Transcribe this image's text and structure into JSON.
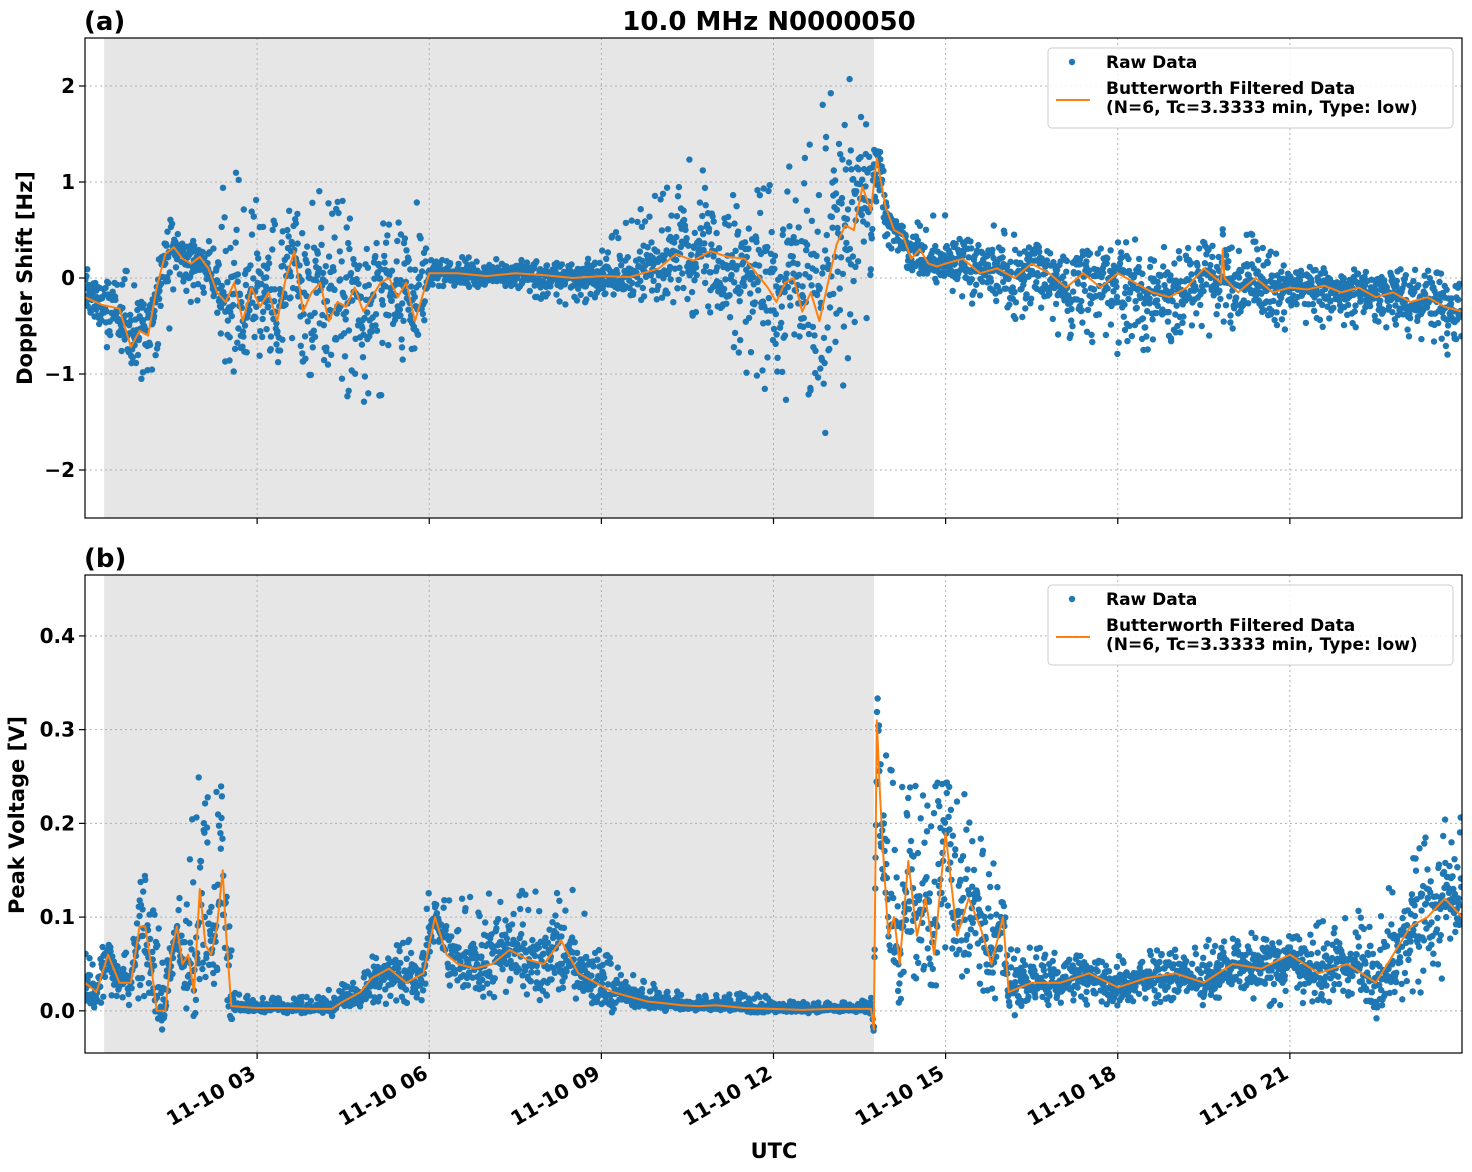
{
  "figure": {
    "title": "10.0 MHz N0000050",
    "xlabel": "UTC",
    "colors": {
      "raw": "#1f77b4",
      "filtered": "#ff7f0e",
      "shade": "#e6e6e6",
      "grid": "#b0b0b0"
    }
  },
  "chart_data": [
    {
      "type": "scatter",
      "panel_label": "(a)",
      "ylabel": "Doppler Shift [Hz]",
      "xlim": [
        "11-10 00:00",
        "11-10 24:00"
      ],
      "x_unit": "hours UTC on 11-10",
      "ylim": [
        -2.5,
        2.5
      ],
      "yticks": [
        -2,
        -1,
        0,
        1,
        2
      ],
      "ytick_labels": [
        "−2",
        "−1",
        "0",
        "1",
        "2"
      ],
      "xticks": [
        "11-10 03",
        "11-10 06",
        "11-10 09",
        "11-10 12",
        "11-10 15",
        "11-10 18",
        "11-10 21"
      ],
      "grid": true,
      "legend_position": "upper right",
      "legend": [
        "Raw Data",
        "Butterworth Filtered Data\n(N=6, Tc=3.3333 min, Type: low)"
      ],
      "shaded_interval": [
        "11-10 00:20",
        "11-10 13:45"
      ],
      "series": [
        {
          "name": "Butterworth Filtered Data",
          "style": "line",
          "x": [
            0.0,
            0.3,
            0.6,
            0.8,
            0.95,
            1.1,
            1.25,
            1.4,
            1.55,
            1.7,
            1.85,
            2.0,
            2.15,
            2.3,
            2.45,
            2.6,
            2.75,
            2.9,
            3.05,
            3.2,
            3.35,
            3.5,
            3.65,
            3.8,
            3.95,
            4.1,
            4.25,
            4.4,
            4.55,
            4.7,
            4.85,
            5.0,
            5.15,
            5.3,
            5.45,
            5.6,
            5.75,
            5.9,
            6.0,
            6.5,
            7.0,
            7.5,
            8.0,
            8.5,
            9.0,
            9.5,
            10.0,
            10.3,
            10.6,
            10.9,
            11.2,
            11.5,
            11.7,
            11.9,
            12.05,
            12.2,
            12.35,
            12.5,
            12.65,
            12.8,
            12.95,
            13.1,
            13.25,
            13.4,
            13.55,
            13.7,
            13.8,
            13.95,
            14.1,
            14.25,
            14.4,
            14.55,
            14.7,
            14.85,
            15.0,
            15.3,
            15.6,
            15.9,
            16.2,
            16.5,
            16.8,
            17.1,
            17.4,
            17.7,
            18.0,
            18.3,
            18.6,
            18.9,
            19.2,
            19.5,
            19.8,
            19.83,
            19.86,
            20.1,
            20.4,
            20.7,
            21.0,
            21.3,
            21.6,
            21.9,
            22.2,
            22.5,
            22.8,
            23.1,
            23.4,
            23.7,
            24.0
          ],
          "y": [
            -0.2,
            -0.28,
            -0.32,
            -0.72,
            -0.55,
            -0.6,
            -0.1,
            0.25,
            0.32,
            0.2,
            0.15,
            0.22,
            0.1,
            -0.15,
            -0.25,
            -0.05,
            -0.45,
            -0.1,
            -0.3,
            -0.15,
            -0.45,
            0.0,
            0.28,
            -0.35,
            -0.15,
            -0.05,
            -0.45,
            -0.25,
            -0.3,
            -0.1,
            -0.35,
            -0.2,
            -0.05,
            0.0,
            -0.2,
            -0.05,
            -0.45,
            -0.15,
            0.05,
            0.05,
            0.02,
            0.05,
            0.03,
            0.0,
            0.02,
            0.01,
            0.1,
            0.25,
            0.18,
            0.28,
            0.22,
            0.2,
            0.05,
            -0.1,
            -0.25,
            -0.05,
            0.0,
            -0.35,
            -0.15,
            -0.45,
            -0.05,
            0.35,
            0.55,
            0.5,
            0.95,
            0.7,
            1.25,
            0.75,
            0.5,
            0.45,
            0.2,
            0.3,
            0.15,
            0.12,
            0.15,
            0.2,
            0.05,
            0.1,
            0.0,
            0.15,
            0.05,
            -0.1,
            0.05,
            -0.1,
            0.05,
            -0.05,
            -0.15,
            -0.2,
            -0.1,
            0.1,
            -0.05,
            0.3,
            0.0,
            -0.15,
            0.0,
            -0.15,
            -0.1,
            -0.12,
            -0.08,
            -0.15,
            -0.1,
            -0.2,
            -0.15,
            -0.25,
            -0.2,
            -0.3,
            -0.35
          ]
        },
        {
          "name": "Raw Data",
          "style": "markers",
          "envelope_x": [
            0.0,
            0.8,
            1.0,
            1.5,
            2.2,
            2.5,
            3.0,
            3.5,
            4.2,
            5.0,
            5.8,
            6.0,
            7.0,
            8.5,
            9.0,
            10.0,
            10.6,
            11.0,
            11.5,
            12.0,
            12.5,
            12.9,
            13.3,
            13.6,
            13.8,
            14.0,
            14.5,
            15.0,
            15.5,
            16.0,
            17.0,
            18.0,
            19.0,
            20.0,
            21.0,
            22.0,
            23.0,
            24.0
          ],
          "envelope_lower": [
            -0.6,
            -0.9,
            -1.2,
            -0.5,
            -0.1,
            -1.1,
            -0.9,
            -0.9,
            -1.1,
            -1.4,
            -0.9,
            -0.1,
            -0.1,
            -0.3,
            -0.2,
            -0.1,
            -0.5,
            -0.6,
            -1.0,
            -1.3,
            -1.6,
            -1.9,
            -1.1,
            -0.5,
            0.2,
            0.3,
            0.0,
            -0.1,
            -0.3,
            -0.4,
            -0.6,
            -0.8,
            -0.7,
            -0.6,
            -0.6,
            -0.5,
            -0.6,
            -0.9
          ],
          "envelope_upper": [
            0.2,
            0.1,
            -0.2,
            0.4,
            0.4,
            1.2,
            0.9,
            0.7,
            1.0,
            0.5,
            0.8,
            0.3,
            0.2,
            0.2,
            0.35,
            0.9,
            1.3,
            1.0,
            0.9,
            1.0,
            1.4,
            1.9,
            2.1,
            1.9,
            1.7,
            0.6,
            0.6,
            0.7,
            0.5,
            0.6,
            0.4,
            0.4,
            0.4,
            0.6,
            0.2,
            0.1,
            0.1,
            0.05
          ]
        }
      ]
    },
    {
      "type": "scatter",
      "panel_label": "(b)",
      "ylabel": "Peak Voltage [V]",
      "xlim": [
        "11-10 00:00",
        "11-10 24:00"
      ],
      "x_unit": "hours UTC on 11-10",
      "ylim": [
        -0.045,
        0.465
      ],
      "yticks": [
        0.0,
        0.1,
        0.2,
        0.3,
        0.4
      ],
      "ytick_labels": [
        "0.0",
        "0.1",
        "0.2",
        "0.3",
        "0.4"
      ],
      "xticks": [
        "11-10 03",
        "11-10 06",
        "11-10 09",
        "11-10 12",
        "11-10 15",
        "11-10 18",
        "11-10 21"
      ],
      "grid": true,
      "legend_position": "upper right",
      "legend": [
        "Raw Data",
        "Butterworth Filtered Data\n(N=6, Tc=3.3333 min, Type: low)"
      ],
      "shaded_interval": [
        "11-10 00:20",
        "11-10 13:45"
      ],
      "series": [
        {
          "name": "Butterworth Filtered Data",
          "style": "line",
          "x": [
            0.0,
            0.2,
            0.4,
            0.6,
            0.8,
            0.95,
            1.05,
            1.15,
            1.25,
            1.4,
            1.5,
            1.6,
            1.7,
            1.8,
            1.9,
            2.0,
            2.1,
            2.2,
            2.3,
            2.4,
            2.45,
            2.55,
            3.0,
            3.5,
            4.0,
            4.3,
            4.5,
            4.8,
            5.0,
            5.3,
            5.6,
            5.9,
            6.1,
            6.3,
            6.5,
            6.8,
            7.1,
            7.4,
            7.7,
            8.0,
            8.3,
            8.6,
            8.9,
            9.2,
            9.5,
            9.8,
            10.1,
            10.4,
            10.7,
            11.0,
            11.5,
            12.0,
            12.5,
            13.0,
            13.5,
            13.7,
            13.75,
            13.8,
            13.85,
            13.9,
            14.0,
            14.1,
            14.2,
            14.35,
            14.5,
            14.65,
            14.8,
            15.0,
            15.2,
            15.4,
            15.6,
            15.8,
            16.0,
            16.1,
            16.5,
            17.0,
            17.5,
            18.0,
            18.5,
            19.0,
            19.5,
            20.0,
            20.5,
            21.0,
            21.5,
            22.0,
            22.5,
            22.8,
            23.1,
            23.4,
            23.7,
            24.0
          ],
          "y": [
            0.03,
            0.02,
            0.06,
            0.03,
            0.03,
            0.09,
            0.09,
            0.05,
            0.0,
            0.0,
            0.06,
            0.09,
            0.05,
            0.06,
            0.02,
            0.13,
            0.07,
            0.06,
            0.09,
            0.15,
            0.09,
            0.005,
            0.003,
            0.003,
            0.002,
            0.002,
            0.01,
            0.02,
            0.035,
            0.045,
            0.03,
            0.04,
            0.1,
            0.06,
            0.05,
            0.045,
            0.05,
            0.065,
            0.055,
            0.05,
            0.075,
            0.04,
            0.03,
            0.02,
            0.015,
            0.01,
            0.008,
            0.006,
            0.005,
            0.006,
            0.003,
            0.002,
            0.001,
            0.002,
            0.002,
            0.002,
            -0.02,
            0.31,
            0.24,
            0.18,
            0.08,
            0.1,
            0.05,
            0.16,
            0.08,
            0.12,
            0.06,
            0.19,
            0.08,
            0.12,
            0.09,
            0.05,
            0.1,
            0.02,
            0.03,
            0.03,
            0.04,
            0.025,
            0.035,
            0.04,
            0.03,
            0.05,
            0.045,
            0.06,
            0.04,
            0.05,
            0.03,
            0.06,
            0.09,
            0.1,
            0.12,
            0.1
          ]
        },
        {
          "name": "Raw Data",
          "style": "markers",
          "envelope_x": [
            0.0,
            0.5,
            0.9,
            1.0,
            1.2,
            1.4,
            1.8,
            2.0,
            2.2,
            2.4,
            2.5,
            2.6,
            4.0,
            4.5,
            5.0,
            5.8,
            6.0,
            6.5,
            7.5,
            8.5,
            9.0,
            9.5,
            10.5,
            11.5,
            12.5,
            13.5,
            13.75,
            13.8,
            14.0,
            14.5,
            15.0,
            15.5,
            16.0,
            16.1,
            17.0,
            18.0,
            19.0,
            20.0,
            21.0,
            22.0,
            23.0,
            23.5,
            24.0
          ],
          "envelope_lower": [
            0.005,
            0.01,
            0.01,
            0.005,
            0.0,
            0.0,
            0.0,
            0.01,
            0.02,
            0.02,
            0.0,
            0.0,
            0.0,
            0.0,
            0.005,
            0.01,
            0.03,
            0.02,
            0.02,
            0.01,
            0.005,
            0.003,
            0.002,
            0.001,
            0.0,
            0.0,
            0.0,
            0.12,
            0.05,
            0.03,
            0.03,
            0.02,
            0.01,
            0.005,
            0.005,
            0.005,
            0.005,
            0.005,
            0.005,
            0.01,
            0.01,
            0.02,
            0.03
          ],
          "envelope_upper": [
            0.07,
            0.07,
            0.08,
            0.17,
            0.12,
            0.06,
            0.16,
            0.29,
            0.22,
            0.27,
            0.15,
            0.02,
            0.015,
            0.03,
            0.06,
            0.08,
            0.13,
            0.12,
            0.13,
            0.13,
            0.08,
            0.04,
            0.02,
            0.02,
            0.01,
            0.01,
            0.02,
            0.38,
            0.26,
            0.25,
            0.3,
            0.24,
            0.12,
            0.08,
            0.06,
            0.06,
            0.07,
            0.08,
            0.1,
            0.1,
            0.15,
            0.2,
            0.22
          ]
        }
      ]
    }
  ]
}
